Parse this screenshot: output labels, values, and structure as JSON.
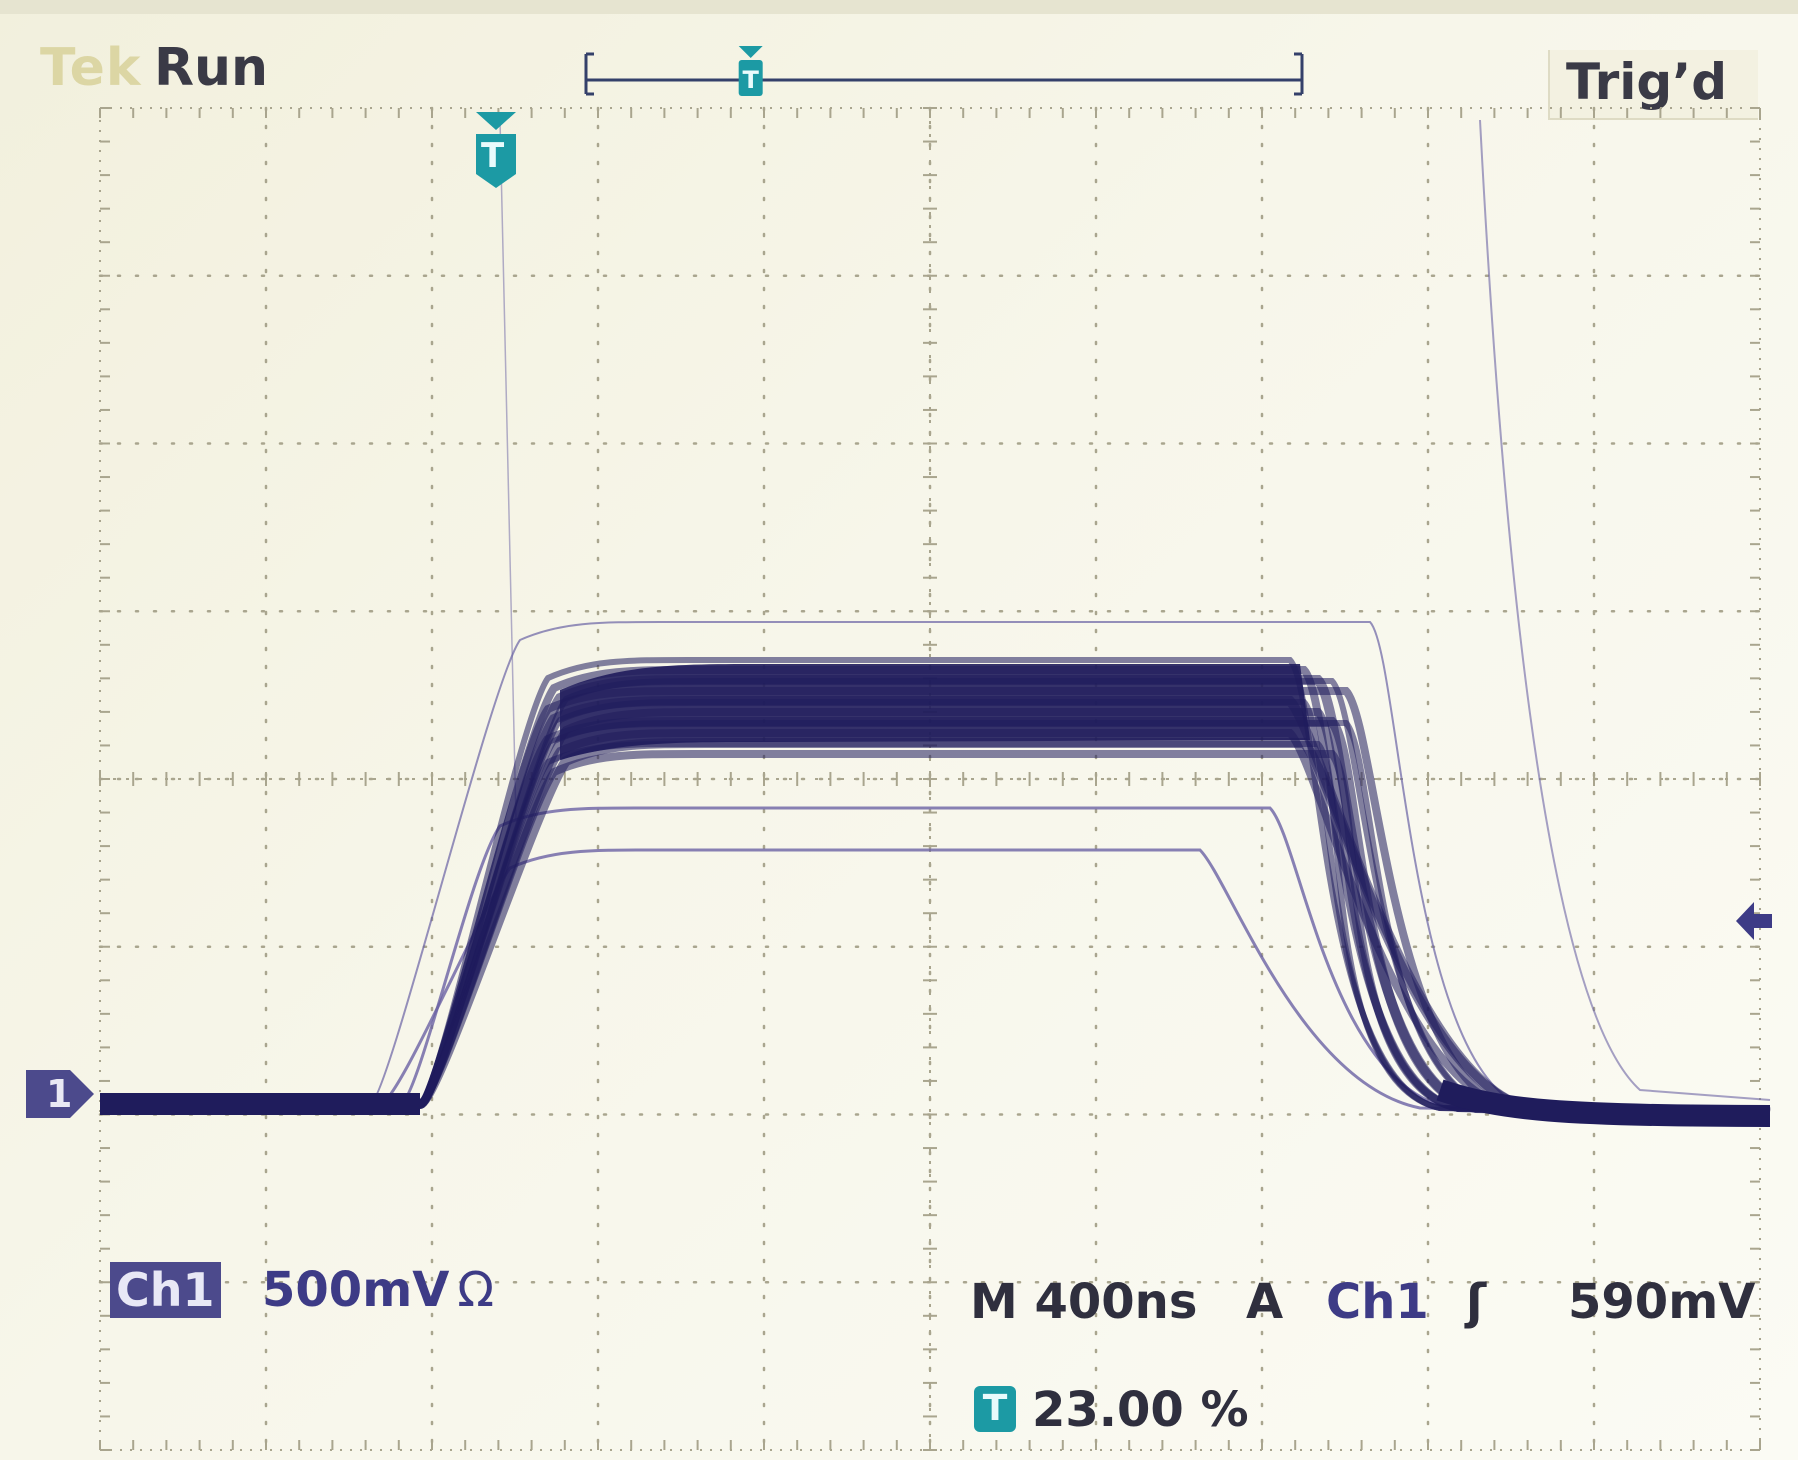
{
  "status": {
    "brand": "Tek",
    "acquisition": "Run",
    "trigger_state": "Trig’d"
  },
  "channel": {
    "name": "Ch1",
    "scale": "500mV",
    "coupling_symbol": "Ω",
    "marker_label": "1"
  },
  "horizontal": {
    "timebase": "M 400ns"
  },
  "trigger": {
    "mode": "A",
    "source": "Ch1",
    "slope_symbol": "ʃ",
    "level": "590mV",
    "marker_label": "T",
    "position_marker_label": "T",
    "position": "23.00 %",
    "position_fraction": 0.23
  },
  "graticule": {
    "divisions_horizontal": 10,
    "divisions_vertical": 8,
    "grid": true
  },
  "colors": {
    "trace": "#1f1c5c",
    "trace_light": "#6a62a4",
    "trigger_marker": "#1c9aa4",
    "channel_badge": "#4c4a8c",
    "grid": "#a9a58e",
    "screen_bg": "#f6f5e8"
  },
  "record_view": {
    "trigger_position_fraction": 0.23
  }
}
